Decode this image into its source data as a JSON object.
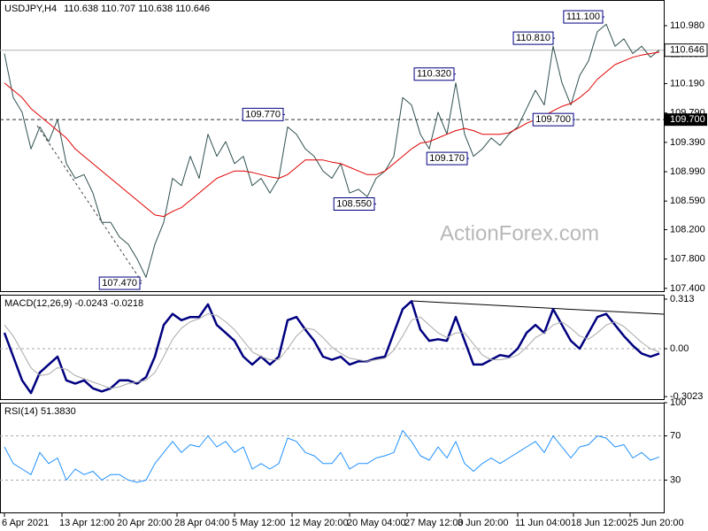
{
  "watermark": "ActionForex.com",
  "chart_data": [
    {
      "type": "line",
      "title": "USDJPY,H4",
      "subtitle": "110.638 110.707 110.638 110.646",
      "xlim": [
        -0.5,
        74.5
      ],
      "ylim": [
        107.35,
        111.33
      ],
      "yticks": [
        {
          "value": 110.98,
          "label": "110.980"
        },
        {
          "value": 110.59,
          "label": "110.590"
        },
        {
          "value": 110.19,
          "label": "110.190"
        },
        {
          "value": 109.79,
          "label": "109.790"
        },
        {
          "value": 109.39,
          "label": "109.390"
        },
        {
          "value": 108.99,
          "label": "108.990"
        },
        {
          "value": 108.59,
          "label": "108.590"
        },
        {
          "value": 108.2,
          "label": "108.200"
        },
        {
          "value": 107.8,
          "label": "107.800"
        },
        {
          "value": 107.4,
          "label": "107.400"
        }
      ],
      "series": [
        {
          "color": "#2f4f4f",
          "values": [
            110.6,
            110.0,
            109.8,
            109.3,
            109.6,
            109.4,
            109.7,
            109.1,
            108.9,
            108.95,
            108.7,
            108.3,
            108.3,
            108.1,
            108.0,
            107.8,
            107.55,
            108.0,
            108.3,
            108.9,
            108.8,
            109.2,
            108.9,
            109.5,
            109.2,
            109.4,
            109.1,
            109.2,
            108.8,
            108.9,
            108.7,
            108.9,
            109.6,
            109.5,
            109.3,
            109.2,
            109.0,
            108.9,
            109.1,
            108.7,
            108.75,
            108.65,
            108.9,
            109.0,
            109.2,
            110.0,
            109.9,
            109.5,
            109.3,
            109.8,
            109.5,
            110.2,
            109.5,
            109.2,
            109.3,
            109.45,
            109.35,
            109.5,
            109.6,
            109.85,
            110.1,
            109.9,
            110.7,
            110.2,
            109.9,
            110.3,
            110.5,
            110.9,
            111.0,
            110.7,
            110.8,
            110.6,
            110.7,
            110.55,
            110.65
          ]
        },
        {
          "color": "#e00000",
          "values": [
            110.2,
            110.1,
            110.0,
            109.85,
            109.75,
            109.65,
            109.55,
            109.45,
            109.3,
            109.2,
            109.1,
            109.0,
            108.9,
            108.8,
            108.7,
            108.6,
            108.5,
            108.4,
            108.38,
            108.45,
            108.5,
            108.6,
            108.7,
            108.8,
            108.9,
            108.95,
            109.0,
            109.0,
            108.98,
            108.95,
            108.92,
            108.9,
            108.95,
            109.05,
            109.15,
            109.15,
            109.15,
            109.12,
            109.1,
            109.05,
            109.0,
            108.95,
            108.95,
            109.0,
            109.1,
            109.2,
            109.3,
            109.38,
            109.4,
            109.45,
            109.5,
            109.55,
            109.58,
            109.55,
            109.5,
            109.5,
            109.5,
            109.52,
            109.58,
            109.65,
            109.7,
            109.75,
            109.82,
            109.88,
            109.92,
            110.0,
            110.1,
            110.25,
            110.35,
            110.45,
            110.5,
            110.55,
            110.58,
            110.6,
            110.62
          ]
        }
      ],
      "annotations": [
        {
          "x": 15.5,
          "value": 107.47,
          "label": "107.470"
        },
        {
          "x": 31.7,
          "value": 109.77,
          "label": "109.770"
        },
        {
          "x": 51,
          "value": 110.32,
          "label": "110.320"
        },
        {
          "x": 42,
          "value": 108.55,
          "label": "108.550"
        },
        {
          "x": 52.5,
          "value": 109.17,
          "label": "109.170"
        },
        {
          "x": 62.2,
          "value": 110.81,
          "label": "110.810"
        },
        {
          "x": 64.5,
          "value": 109.7,
          "label": "109.700"
        },
        {
          "x": 67.8,
          "value": 111.1,
          "label": "111.100"
        }
      ],
      "hline": {
        "value": 109.7,
        "label": "109.700"
      },
      "last_price": {
        "value": 110.646,
        "label": "110.646"
      }
    },
    {
      "type": "line",
      "title": "MACD(12,26,9) -0.0243 -0.0218",
      "xlim": [
        -0.5,
        74.5
      ],
      "ylim": [
        -0.324,
        0.341
      ],
      "yticks": [
        0.313,
        {
          "value": 0,
          "label": "0.00"
        },
        -0.3023
      ],
      "series": [
        {
          "color": "#000080",
          "values": [
            0.1,
            -0.05,
            -0.2,
            -0.28,
            -0.15,
            -0.1,
            -0.05,
            -0.2,
            -0.22,
            -0.2,
            -0.25,
            -0.27,
            -0.25,
            -0.2,
            -0.2,
            -0.22,
            -0.18,
            -0.05,
            0.15,
            0.22,
            0.18,
            0.2,
            0.2,
            0.28,
            0.15,
            0.1,
            0.05,
            -0.05,
            -0.1,
            -0.05,
            -0.1,
            -0.05,
            0.18,
            0.2,
            0.12,
            0.05,
            -0.05,
            -0.07,
            -0.05,
            -0.1,
            -0.08,
            -0.08,
            -0.06,
            -0.05,
            0.1,
            0.25,
            0.3,
            0.12,
            0.05,
            0.06,
            0.05,
            0.2,
            0.05,
            -0.1,
            -0.1,
            -0.07,
            -0.04,
            -0.05,
            0,
            0.1,
            0.15,
            0.1,
            0.25,
            0.15,
            0.05,
            0,
            0.1,
            0.2,
            0.22,
            0.15,
            0.08,
            0.02,
            -0.03,
            -0.05,
            -0.03
          ]
        },
        {
          "color": "#a9a9a9",
          "values": [
            0.15,
            0.08,
            -0.02,
            -0.12,
            -0.17,
            -0.16,
            -0.12,
            -0.13,
            -0.17,
            -0.19,
            -0.21,
            -0.23,
            -0.25,
            -0.24,
            -0.22,
            -0.21,
            -0.2,
            -0.15,
            -0.05,
            0.06,
            0.13,
            0.17,
            0.19,
            0.22,
            0.21,
            0.17,
            0.12,
            0.05,
            -0.02,
            -0.05,
            -0.07,
            -0.07,
            0.0,
            0.08,
            0.13,
            0.12,
            0.07,
            0.01,
            -0.03,
            -0.06,
            -0.07,
            -0.08,
            -0.07,
            -0.06,
            -0.01,
            0.08,
            0.18,
            0.2,
            0.15,
            0.1,
            0.07,
            0.1,
            0.1,
            0.03,
            -0.04,
            -0.07,
            -0.07,
            -0.06,
            -0.04,
            0.01,
            0.07,
            0.1,
            0.15,
            0.17,
            0.13,
            0.08,
            0.06,
            0.1,
            0.15,
            0.17,
            0.14,
            0.09,
            0.04,
            0.0,
            -0.02
          ]
        }
      ]
    },
    {
      "type": "line",
      "title": "RSI(14) 51.3830",
      "xlim": [
        -0.5,
        74.5
      ],
      "ylim": [
        0,
        100
      ],
      "yticks": [
        100,
        70,
        30
      ],
      "xticks": [
        {
          "value": 0,
          "label": "6 Apr 2021"
        },
        {
          "value": 6.5,
          "label": "13 Apr 12:00"
        },
        {
          "value": 13,
          "label": "20 Apr 20:00"
        },
        {
          "value": 19.5,
          "label": "28 Apr 04:00"
        },
        {
          "value": 26,
          "label": "5 May 12:00"
        },
        {
          "value": 32.5,
          "label": "12 May 20:00"
        },
        {
          "value": 39,
          "label": "20 May 04:00"
        },
        {
          "value": 45.5,
          "label": "27 May 12:00"
        },
        {
          "value": 51.5,
          "label": "3 Jun 20:00"
        },
        {
          "value": 58,
          "label": "11 Jun 04:00"
        },
        {
          "value": 64.3,
          "label": "18 Jun 12:00"
        },
        {
          "value": 70.7,
          "label": "25 Jun 20:00"
        }
      ],
      "series": [
        {
          "color": "#1e90ff",
          "values": [
            60,
            45,
            40,
            35,
            55,
            45,
            50,
            30,
            40,
            35,
            38,
            30,
            35,
            35,
            30,
            28,
            30,
            45,
            55,
            65,
            55,
            62,
            60,
            70,
            60,
            65,
            55,
            60,
            40,
            45,
            40,
            45,
            68,
            65,
            55,
            52,
            45,
            45,
            55,
            40,
            45,
            45,
            50,
            52,
            55,
            75,
            65,
            52,
            48,
            60,
            50,
            65,
            45,
            38,
            45,
            50,
            45,
            50,
            55,
            60,
            65,
            55,
            70,
            60,
            50,
            60,
            62,
            70,
            68,
            60,
            62,
            50,
            55,
            48,
            51
          ]
        }
      ]
    }
  ]
}
